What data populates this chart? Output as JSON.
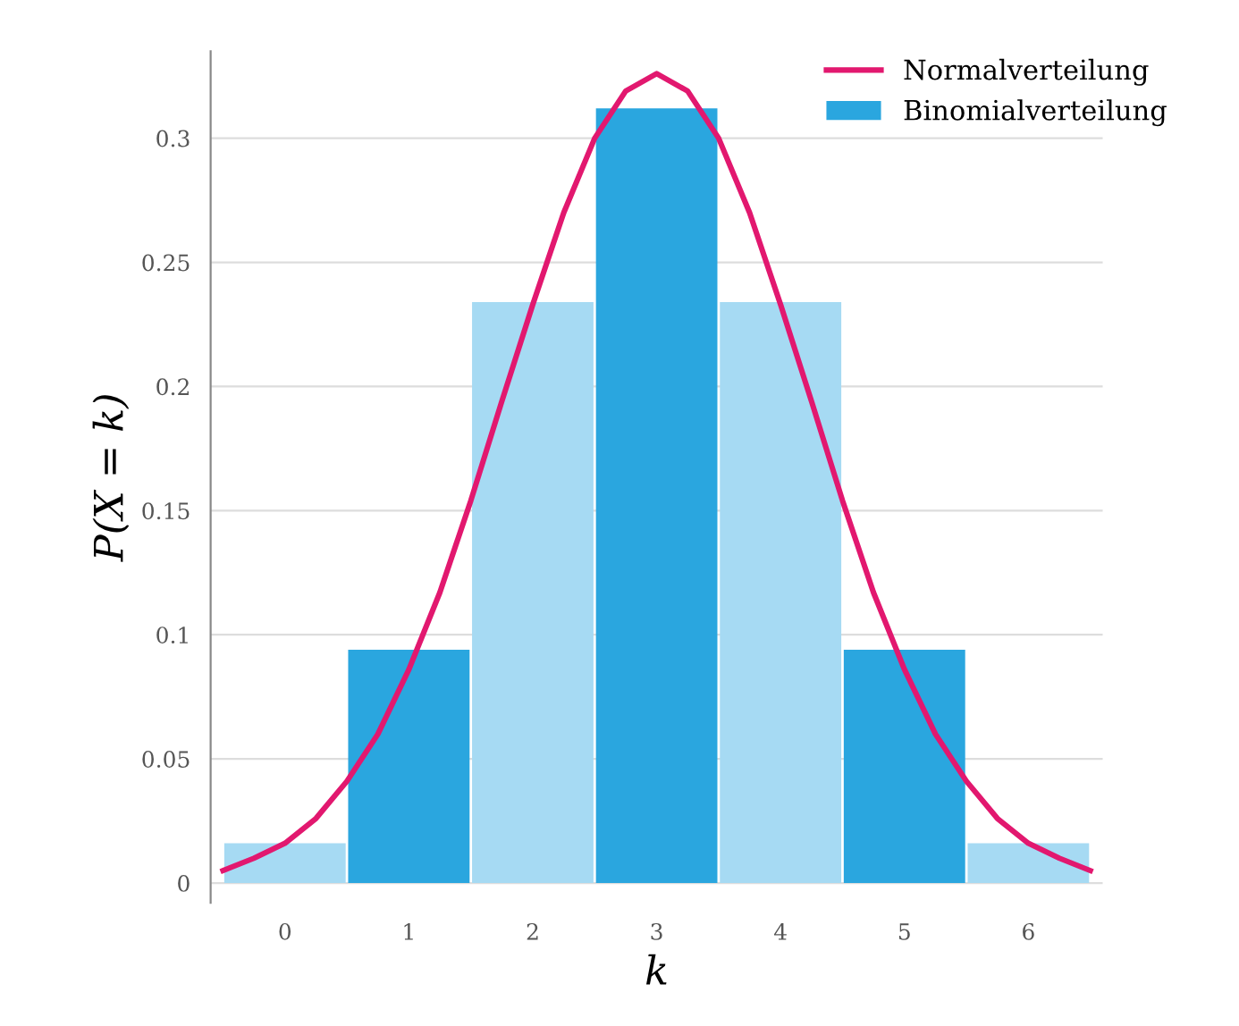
{
  "chart_data": {
    "type": "bar",
    "xlabel": "k",
    "ylabel": "P(X = k)",
    "x": [
      0,
      1,
      2,
      3,
      4,
      5,
      6
    ],
    "series": [
      {
        "name": "Normalverteilung",
        "type": "line",
        "color": "#e2186f",
        "x": [
          -0.5,
          -0.25,
          0,
          0.25,
          0.5,
          0.75,
          1,
          1.25,
          1.5,
          1.75,
          2,
          2.25,
          2.5,
          2.75,
          3,
          3.25,
          3.5,
          3.75,
          4,
          4.25,
          4.5,
          4.75,
          5,
          5.25,
          5.5,
          5.75,
          6,
          6.25,
          6.5
        ],
        "values": [
          0.005,
          0.01,
          0.016,
          0.026,
          0.041,
          0.06,
          0.086,
          0.117,
          0.154,
          0.194,
          0.233,
          0.27,
          0.3,
          0.319,
          0.326,
          0.319,
          0.3,
          0.27,
          0.233,
          0.194,
          0.154,
          0.117,
          0.086,
          0.06,
          0.041,
          0.026,
          0.016,
          0.01,
          0.005
        ]
      },
      {
        "name": "Binomialverteilung",
        "colors": [
          "#a6daf3",
          "#2aa6df",
          "#a6daf3",
          "#2aa6df",
          "#a6daf3",
          "#2aa6df",
          "#a6daf3"
        ],
        "color": "#2aa6df",
        "values": [
          0.016,
          0.094,
          0.234,
          0.312,
          0.234,
          0.094,
          0.016
        ]
      }
    ],
    "xlim": [
      -0.6,
      6.6
    ],
    "xticks": [
      0,
      1,
      2,
      3,
      4,
      5,
      6
    ],
    "ylim": [
      -0.008,
      0.335
    ],
    "yticks": [
      0,
      0.05,
      0.1,
      0.15,
      0.2,
      0.25,
      0.3
    ],
    "grid": "y",
    "legend": "top right"
  }
}
